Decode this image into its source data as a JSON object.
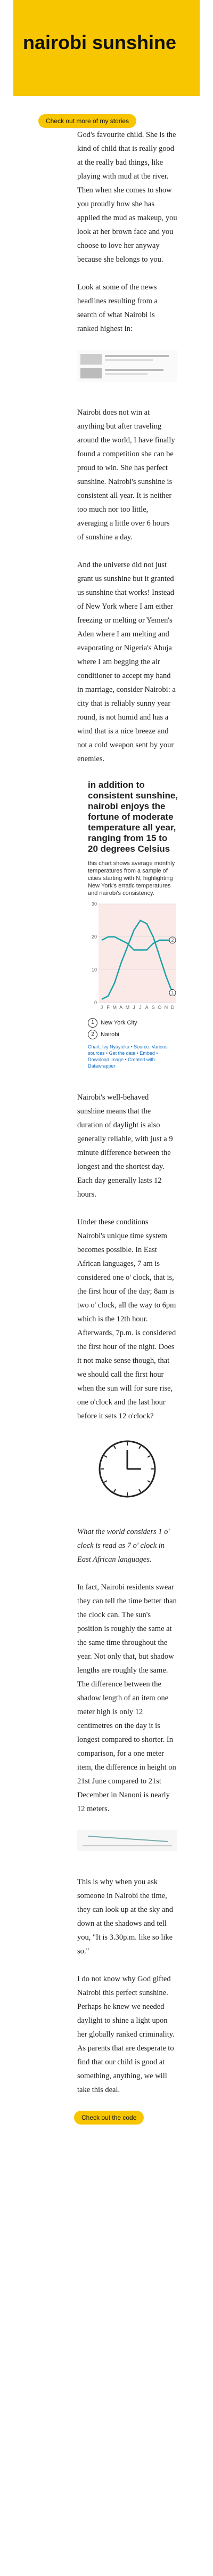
{
  "header": {
    "title": "nairobi sunshine",
    "button": "Check out more of my stories"
  },
  "article": {
    "p": [
      "God's favourite child. She is the kind of child that is really good at the really bad things, like playing with mud at the river. Then when she comes to show you proudly how she has applied the mud as makeup, you look at her brown face and you choose to love her anyway because she belongs to you.",
      "Look at some of the news headlines resulting from a search of what Nairobi is ranked highest in:",
      "Nairobi does not win at anything but after traveling around the world, I have finally found a competition she can be proud to win. She has perfect sunshine. Nairobi's sunshine is consistent all year. It is neither too much nor too little, averaging a little over 6 hours of sunshine a day.",
      "And the universe did not just grant us sunshine but it granted us sunshine that works! Instead of New York where I am either freezing or melting or Yemen's Aden where I am melting and evaporating or Nigeria's Abuja where I am begging the air conditioner to accept my hand in marriage, consider Nairobi: a city that is reliably sunny year round, is not humid and has a wind that is a nice breeze and not a cold weapon sent by your enemies.",
      "Nairobi's well-behaved sunshine means that the duration of daylight is also generally reliable, with just a 9 minute difference between the longest and the shortest day. Each day generally lasts 12 hours.",
      "Under these conditions Nairobi's unique time system becomes possible. In East African languages, 7 am is considered one o' clock, that is, the first hour of the day; 8am is two o' clock, all the way to 6pm which is the 12th hour. Afterwards, 7p.m. is considered the first hour of the night. Does it not make sense though, that we should call the first hour when the sun will for sure rise, one o'clock and the last hour before it sets 12 o'clock?",
      "In fact, Nairobi residents swear they can tell the time better than the clock can. The sun's position is roughly the same at the same time throughout the year. Not only that, but shadow lengths are roughly the same. The difference between the shadow length of an item one meter high is only 12 centimetres on the day it is longest compared to shorter. In comparison, for a one meter item, the difference in height on 21st June compared to 21st December in Nanoni is nearly 12 meters.",
      "This is why when you ask someone in Nairobi the time, they can look up at the sky and down at the shadows and tell you, \"It is 3.30p.m. like so like so.\"",
      "I do not know why God gifted Nairobi this perfect sunshine. Perhaps he knew we needed daylight to shine a light upon her globally ranked criminality. As parents that are desperate to find that our child is good at something, anything, we will take this deal."
    ],
    "caption": "What the world considers 1 o' clock is read as 7 o' clock in East African languages.",
    "button": "Check out the code"
  },
  "chart_data": {
    "type": "line",
    "title": "in addition to consistent sunshine, nairobi enjoys the fortune of moderate temperature all year, ranging from 15 to 20 degrees Celsius",
    "subtitle": "this chart shows average monthly temperatures from a sample of cities starting with N, highlighting New York's erratic temperatures and nairobi's consistency.",
    "categories": [
      "J",
      "F",
      "M",
      "A",
      "M",
      "J",
      "J",
      "A",
      "S",
      "O",
      "N",
      "D"
    ],
    "series": [
      {
        "name": "New York City",
        "marker": "1",
        "color": "#1aa1a6",
        "values": [
          1,
          2,
          6,
          12,
          17,
          22,
          25,
          24,
          20,
          14,
          8,
          3
        ]
      },
      {
        "name": "Nairobi",
        "marker": "2",
        "color": "#1aa1a6",
        "values": [
          19,
          20,
          20,
          19,
          18,
          16,
          16,
          16,
          18,
          19,
          19,
          19
        ]
      }
    ],
    "ylim": [
      0,
      30
    ],
    "yticks": [
      0,
      10,
      20,
      30
    ],
    "source": "Chart: Ivy Nyayieka • Source: Various sources • Get the data • Embed • Download image • Created with Datawrapper"
  }
}
